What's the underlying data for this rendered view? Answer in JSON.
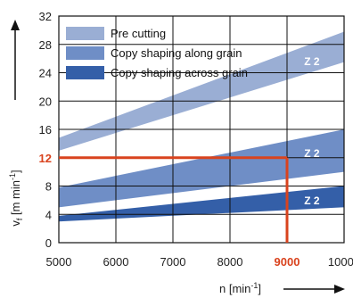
{
  "chart_data": {
    "type": "area",
    "xlabel_base": "n [min",
    "xlabel_sup": "-1",
    "xlabel_end": "]",
    "ylabel_base": "v",
    "ylabel_sub": "f",
    "ylabel_mid": " [m min",
    "ylabel_sup": "-1",
    "ylabel_end": "]",
    "xlim": [
      5000,
      10000
    ],
    "ylim": [
      0,
      32
    ],
    "x_ticks": [
      5000,
      6000,
      7000,
      8000,
      9000,
      10000
    ],
    "y_ticks": [
      0,
      4,
      8,
      12,
      16,
      20,
      24,
      28,
      32
    ],
    "x_tick_labels": [
      "5000",
      "6000",
      "7000",
      "8000",
      "9000",
      "10000"
    ],
    "y_tick_labels": [
      "0",
      "4",
      "8",
      "12",
      "16",
      "20",
      "24",
      "28",
      "32"
    ],
    "grid": true,
    "legend_position": "top-left",
    "series": [
      {
        "name": "Pre cutting",
        "color": "#9aaed4",
        "label": "Z 2",
        "x": [
          5000,
          10000
        ],
        "lower": [
          13,
          25.5
        ],
        "upper": [
          14.8,
          29.8
        ]
      },
      {
        "name": "Copy shaping along grain",
        "color": "#6f8ec6",
        "label": "Z 2",
        "x": [
          5000,
          10000
        ],
        "lower": [
          5,
          10
        ],
        "upper": [
          7.8,
          16
        ]
      },
      {
        "name": "Copy shaping across grain",
        "color": "#345fa8",
        "label": "Z 2",
        "x": [
          5000,
          10000
        ],
        "lower": [
          3,
          5
        ],
        "upper": [
          3.8,
          8
        ]
      }
    ],
    "highlight": {
      "x": 9000,
      "y": 12,
      "x_label": "9000",
      "y_label": "12",
      "color": "#d9431e"
    }
  }
}
